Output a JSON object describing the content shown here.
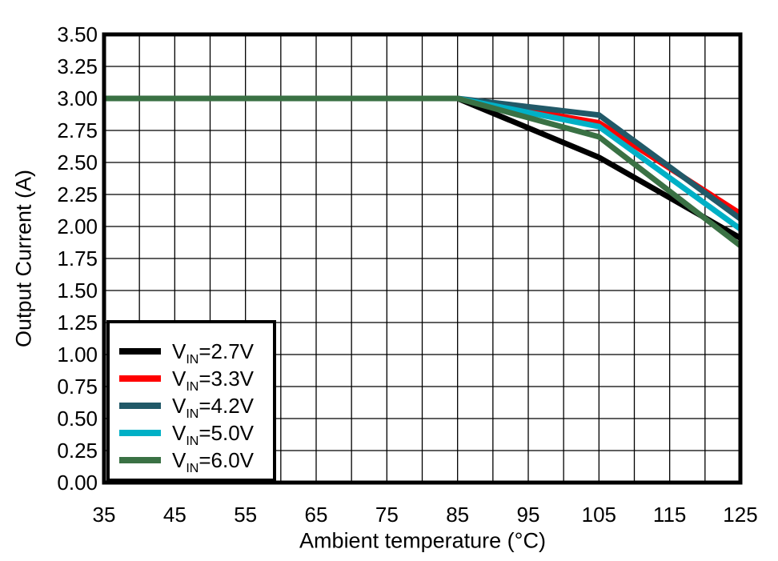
{
  "chart_data": {
    "type": "line",
    "title": "",
    "xlabel": "Ambient temperature (°C)",
    "ylabel": "Output Current (A)",
    "xlim": [
      35,
      125
    ],
    "ylim": [
      0,
      3.5
    ],
    "grid": true,
    "x_gridline_step": 5,
    "y_gridline_step": 0.25,
    "x_ticks": [
      35,
      45,
      55,
      65,
      75,
      85,
      95,
      105,
      115,
      125
    ],
    "x_tick_labels": [
      "35",
      "45",
      "55",
      "65",
      "75",
      "85",
      "95",
      "105",
      "115",
      "125"
    ],
    "y_ticks": [
      0,
      0.25,
      0.5,
      0.75,
      1.0,
      1.25,
      1.5,
      1.75,
      2.0,
      2.25,
      2.5,
      2.75,
      3.0,
      3.25,
      3.5
    ],
    "y_tick_labels": [
      "0.00",
      "0.25",
      "0.50",
      "0.75",
      "1.00",
      "1.25",
      "1.50",
      "1.75",
      "2.00",
      "2.25",
      "2.50",
      "2.75",
      "3.00",
      "3.25",
      "3.50"
    ],
    "legend_position": "lower-left",
    "series": [
      {
        "name": "VIN=2.7V",
        "label_parts": {
          "prefix": "V",
          "sub": "IN",
          "rest": "=2.7V"
        },
        "color": "#000000",
        "points": [
          [
            35,
            3.0
          ],
          [
            85,
            3.0
          ],
          [
            105,
            2.54
          ],
          [
            125,
            1.91
          ]
        ]
      },
      {
        "name": "VIN=3.3V",
        "label_parts": {
          "prefix": "V",
          "sub": "IN",
          "rest": "=3.3V"
        },
        "color": "#ff0000",
        "points": [
          [
            35,
            3.0
          ],
          [
            85,
            3.0
          ],
          [
            105,
            2.81
          ],
          [
            125,
            2.1
          ]
        ]
      },
      {
        "name": "VIN=4.2V",
        "label_parts": {
          "prefix": "V",
          "sub": "IN",
          "rest": "=4.2V"
        },
        "color": "#215968",
        "points": [
          [
            35,
            3.0
          ],
          [
            85,
            3.0
          ],
          [
            105,
            2.87
          ],
          [
            125,
            2.06
          ]
        ]
      },
      {
        "name": "VIN=5.0V",
        "label_parts": {
          "prefix": "V",
          "sub": "IN",
          "rest": "=5.0V"
        },
        "color": "#00b0c6",
        "points": [
          [
            35,
            3.0
          ],
          [
            85,
            3.0
          ],
          [
            105,
            2.78
          ],
          [
            125,
            1.98
          ]
        ]
      },
      {
        "name": "VIN=6.0V",
        "label_parts": {
          "prefix": "V",
          "sub": "IN",
          "rest": "=6.0V"
        },
        "color": "#3a7144",
        "points": [
          [
            35,
            3.0
          ],
          [
            85,
            3.0
          ],
          [
            105,
            2.7
          ],
          [
            125,
            1.85
          ]
        ]
      }
    ],
    "style": {
      "frame_color": "#000000",
      "gridline_color": "#000000",
      "background": "#ffffff"
    }
  }
}
